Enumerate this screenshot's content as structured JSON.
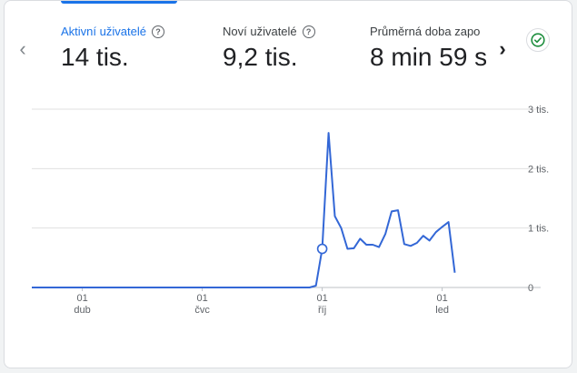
{
  "metrics": [
    {
      "label": "Aktivní uživatelé",
      "value": "14 tis.",
      "active": true
    },
    {
      "label": "Noví uživatelé",
      "value": "9,2 tis.",
      "active": false
    },
    {
      "label": "Průměrná doba zapo",
      "value": "8 min 59 s",
      "active": false
    }
  ],
  "help_glyph": "?",
  "nav": {
    "prev_glyph": "‹",
    "next_glyph": "›"
  },
  "colors": {
    "accent": "#1a73e8",
    "line": "#3367d6",
    "check": "#1e8e3e",
    "grid": "#e0e0e0"
  },
  "chart_data": {
    "type": "line",
    "y_ticks": [
      {
        "value": 3000,
        "label": "3 tis."
      },
      {
        "value": 2000,
        "label": "2 tis."
      },
      {
        "value": 1000,
        "label": "1 tis."
      },
      {
        "value": 0,
        "label": "0"
      }
    ],
    "ylim": [
      0,
      3000
    ],
    "x_ticks": [
      {
        "index": 8,
        "day": "01",
        "month": "dub"
      },
      {
        "index": 27,
        "day": "01",
        "month": "čvc"
      },
      {
        "index": 46,
        "day": "01",
        "month": "říj"
      },
      {
        "index": 65,
        "day": "01",
        "month": "led"
      }
    ],
    "x_count": 78,
    "values": [
      0,
      0,
      0,
      0,
      0,
      0,
      0,
      0,
      0,
      0,
      0,
      0,
      0,
      0,
      0,
      0,
      0,
      0,
      0,
      0,
      0,
      0,
      0,
      0,
      0,
      0,
      0,
      0,
      0,
      0,
      0,
      0,
      0,
      0,
      0,
      0,
      0,
      0,
      0,
      0,
      0,
      0,
      0,
      0,
      0,
      30,
      650,
      2600,
      1200,
      1000,
      650,
      660,
      820,
      720,
      720,
      680,
      900,
      1280,
      1300,
      730,
      700,
      750,
      870,
      790,
      930,
      1020,
      1100,
      250
    ],
    "highlight_index": 46
  }
}
